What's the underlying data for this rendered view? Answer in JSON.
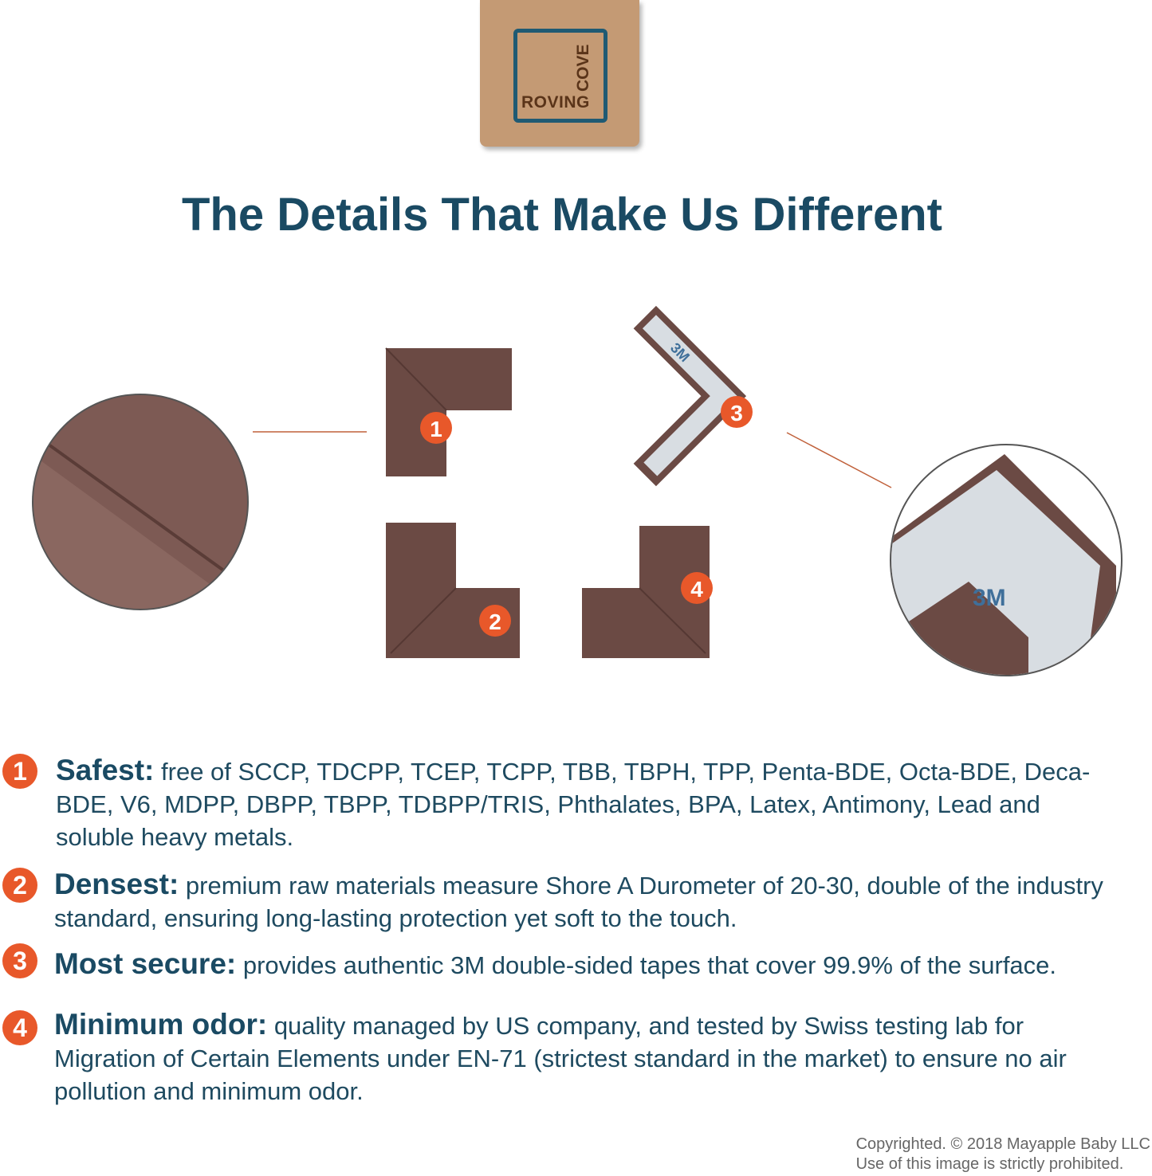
{
  "logo": {
    "text_roving": "ROVING",
    "text_cove": "COVE",
    "colors": {
      "background": "#c49a74",
      "frame": "#1f5a73",
      "text": "#5a3419"
    }
  },
  "title": "The Details That Make Us Different",
  "product": {
    "color": "#6b4a44",
    "badge_color": "#e8582a",
    "tape_text": "3M",
    "markers": [
      "1",
      "2",
      "3",
      "4"
    ]
  },
  "features": [
    {
      "number": "1",
      "heading": "Safest:",
      "text": "free of SCCP, TDCPP, TCEP, TCPP, TBB, TBPH, TPP, Penta-BDE, Octa-BDE, Deca-BDE, V6, MDPP, DBPP, TBPP, TDBPP/TRIS, Phthalates, BPA, Latex, Antimony, Lead and soluble heavy metals."
    },
    {
      "number": "2",
      "heading": "Densest:",
      "text": "premium raw materials measure Shore A Durometer of 20-30, double of the industry standard, ensuring long-lasting protection yet soft to the touch."
    },
    {
      "number": "3",
      "heading": "Most secure:",
      "text": "provides authentic 3M double-sided tapes that cover 99.9% of the surface."
    },
    {
      "number": "4",
      "heading": "Minimum odor:",
      "text": "quality managed by US company, and tested by Swiss testing lab for Migration of Certain Elements under EN-71 (strictest standard in the market) to ensure no air pollution and minimum odor."
    }
  ],
  "copyright": {
    "line1": "Copyrighted. © 2018 Mayapple Baby LLC",
    "line2": "Use of this image is strictly prohibited."
  }
}
